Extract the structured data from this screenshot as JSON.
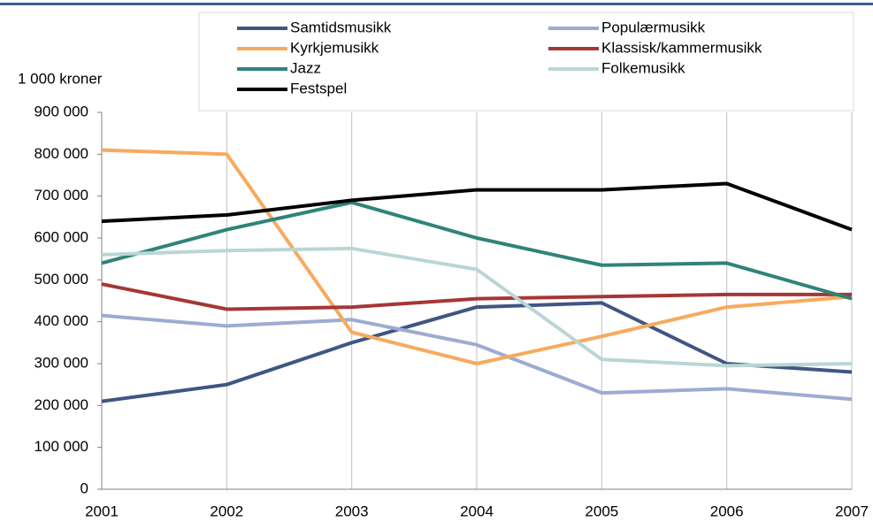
{
  "chart_data": {
    "type": "line",
    "y_label": "1 000 kroner",
    "x": [
      2001,
      2002,
      2003,
      2004,
      2005,
      2006,
      2007
    ],
    "xlim": [
      2001,
      2007
    ],
    "xticks": [
      2001,
      2002,
      2003,
      2004,
      2005,
      2006,
      2007
    ],
    "ylim": [
      0,
      900000
    ],
    "yticks": [
      0,
      {
        "value": 100000,
        "label": "100 000"
      },
      {
        "value": 200000,
        "label": "200 000"
      },
      {
        "value": 300000,
        "label": "300 000"
      },
      {
        "value": 400000,
        "label": "400 000"
      },
      {
        "value": 500000,
        "label": "500 000"
      },
      {
        "value": 600000,
        "label": "600 000"
      },
      {
        "value": 700000,
        "label": "700 000"
      },
      {
        "value": 800000,
        "label": "800 000"
      },
      {
        "value": 900000,
        "label": "900 000"
      }
    ],
    "grid": true,
    "legend": "top",
    "series": [
      {
        "name": "Samtidsmusikk",
        "color": "#3f5682",
        "values": [
          210000,
          250000,
          350000,
          435000,
          445000,
          300000,
          280000
        ]
      },
      {
        "name": "Populærmusikk",
        "color": "#9dabd2",
        "values": [
          415000,
          390000,
          405000,
          345000,
          230000,
          240000,
          215000
        ]
      },
      {
        "name": "Kyrkjemusikk",
        "color": "#f7aa5e",
        "values": [
          810000,
          800000,
          375000,
          300000,
          365000,
          435000,
          460000
        ]
      },
      {
        "name": "Klassisk/kammermusikk",
        "color": "#a63636",
        "values": [
          490000,
          430000,
          435000,
          455000,
          460000,
          465000,
          465000
        ]
      },
      {
        "name": "Jazz",
        "color": "#2f837a",
        "values": [
          540000,
          620000,
          685000,
          600000,
          535000,
          540000,
          455000
        ]
      },
      {
        "name": "Folkemusikk",
        "color": "#b9d6d4",
        "values": [
          560000,
          570000,
          575000,
          525000,
          310000,
          295000,
          300000
        ]
      },
      {
        "name": "Festspel",
        "color": "#000000",
        "values": [
          640000,
          655000,
          690000,
          715000,
          715000,
          730000,
          620000
        ]
      }
    ]
  }
}
